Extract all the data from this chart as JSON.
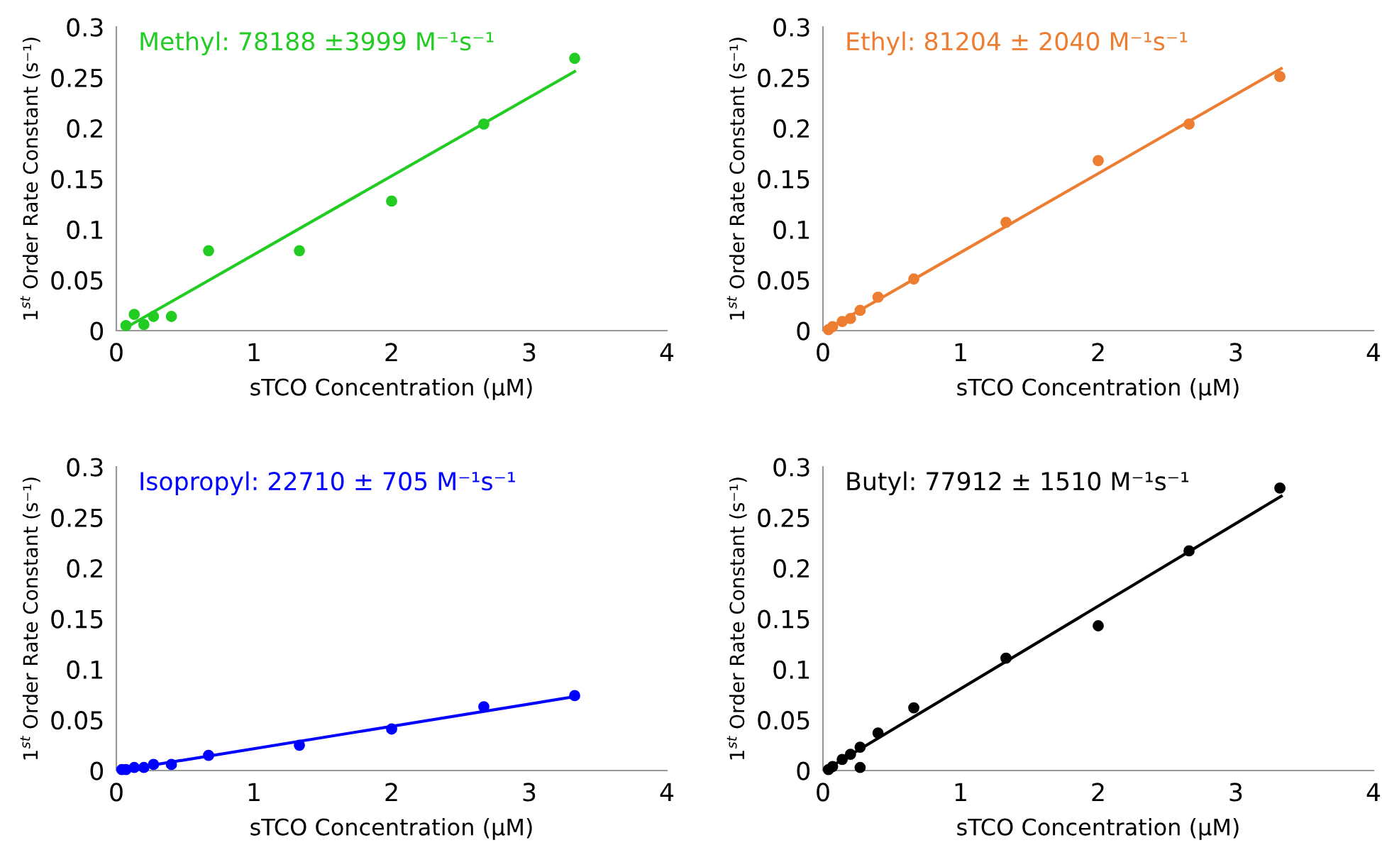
{
  "chart_data": [
    {
      "type": "scatter",
      "xlabel": "sTCO Concentration (μM)",
      "ylabel": "1$^{st}$ Order Rate Constant (s⁻¹)",
      "annotations": [
        "Methyl: 78188 ±3999 M⁻¹s⁻¹"
      ],
      "xlim": [
        0,
        4
      ],
      "ylim": [
        0,
        0.3
      ],
      "xticks": [
        0,
        1,
        2,
        3,
        4
      ],
      "yticks": [
        0,
        0.05,
        0.1,
        0.15,
        0.2,
        0.25,
        0.3
      ],
      "grid": false,
      "legend": false,
      "series": [
        {
          "type": "scatter",
          "marker": "circle",
          "color": "#22cc22",
          "x": [
            0.07,
            0.13,
            0.2,
            0.27,
            0.4,
            0.67,
            1.33,
            2,
            2.67,
            3.33
          ],
          "values": [
            0.005,
            0.016,
            0.006,
            0.014,
            0.014,
            0.079,
            0.079,
            0.128,
            0.204,
            0.269
          ]
        },
        {
          "type": "line",
          "marker": "none",
          "line_style": "solid",
          "color": "#22cc22",
          "x": [
            0.07,
            3.33
          ],
          "values": [
            0.003,
            0.256
          ]
        }
      ]
    },
    {
      "type": "scatter",
      "xlabel": "sTCO Concentration (μM)",
      "ylabel": "1$^{st}$ Order Rate Constant (s⁻¹)",
      "annotations": [
        "Ethyl: 81204 ± 2040 M⁻¹s⁻¹"
      ],
      "xlim": [
        0,
        4
      ],
      "ylim": [
        0,
        0.3
      ],
      "xticks": [
        0,
        1,
        2,
        3,
        4
      ],
      "yticks": [
        0,
        0.05,
        0.1,
        0.15,
        0.2,
        0.25,
        0.3
      ],
      "grid": false,
      "legend": false,
      "series": [
        {
          "type": "scatter",
          "marker": "circle",
          "color": "#ed7d31",
          "x": [
            0.04,
            0.07,
            0.14,
            0.2,
            0.27,
            0.4,
            0.66,
            1.33,
            2,
            2.66,
            3.32
          ],
          "values": [
            0.001,
            0.004,
            0.009,
            0.012,
            0.02,
            0.033,
            0.051,
            0.107,
            0.168,
            0.204,
            0.251
          ]
        },
        {
          "type": "line",
          "marker": "none",
          "line_style": "solid",
          "color": "#ed7d31",
          "x": [
            0.01,
            3.33
          ],
          "values": [
            0,
            0.259
          ]
        }
      ]
    },
    {
      "type": "scatter",
      "xlabel": "sTCO Concentration (μM)",
      "ylabel": "1$^{st}$ Order Rate Constant (s⁻¹)",
      "annotations": [
        "Isopropyl: 22710 ± 705 M⁻¹s⁻¹"
      ],
      "xlim": [
        0,
        4
      ],
      "ylim": [
        0,
        0.3
      ],
      "xticks": [
        0,
        1,
        2,
        3,
        4
      ],
      "yticks": [
        0,
        0.05,
        0.1,
        0.15,
        0.2,
        0.25,
        0.3
      ],
      "grid": false,
      "legend": false,
      "series": [
        {
          "type": "scatter",
          "marker": "circle",
          "color": "#0000ff",
          "x": [
            0.04,
            0.07,
            0.13,
            0.2,
            0.27,
            0.4,
            0.67,
            1.33,
            2,
            2.67,
            3.33
          ],
          "values": [
            0.001,
            0.001,
            0.003,
            0.003,
            0.006,
            0.006,
            0.015,
            0.025,
            0.041,
            0.063,
            0.074
          ]
        },
        {
          "type": "line",
          "marker": "none",
          "line_style": "solid",
          "color": "#0000ff",
          "x": [
            0.02,
            3.33
          ],
          "values": [
            0,
            0.073
          ]
        }
      ]
    },
    {
      "type": "scatter",
      "xlabel": "sTCO Concentration (μM)",
      "ylabel": "1$^{st}$ Order Rate Constant (s⁻¹)",
      "annotations": [
        "Butyl: 77912 ± 1510 M⁻¹s⁻¹"
      ],
      "xlim": [
        0,
        4
      ],
      "ylim": [
        0,
        0.3
      ],
      "xticks": [
        0,
        1,
        2,
        3,
        4
      ],
      "yticks": [
        0,
        0.05,
        0.1,
        0.15,
        0.2,
        0.25,
        0.3
      ],
      "grid": false,
      "legend": false,
      "series": [
        {
          "type": "scatter",
          "marker": "circle",
          "color": "#000000",
          "x": [
            0.04,
            0.07,
            0.14,
            0.2,
            0.27,
            0.27,
            0.4,
            0.66,
            1.33,
            2,
            2.66,
            3.32
          ],
          "values": [
            0.001,
            0.004,
            0.011,
            0.016,
            0.023,
            0.003,
            0.037,
            0.062,
            0.111,
            0.143,
            0.217,
            0.279
          ]
        },
        {
          "type": "line",
          "marker": "none",
          "line_style": "solid",
          "color": "#000000",
          "x": [
            0.01,
            3.33
          ],
          "values": [
            0,
            0.271
          ]
        }
      ]
    }
  ]
}
